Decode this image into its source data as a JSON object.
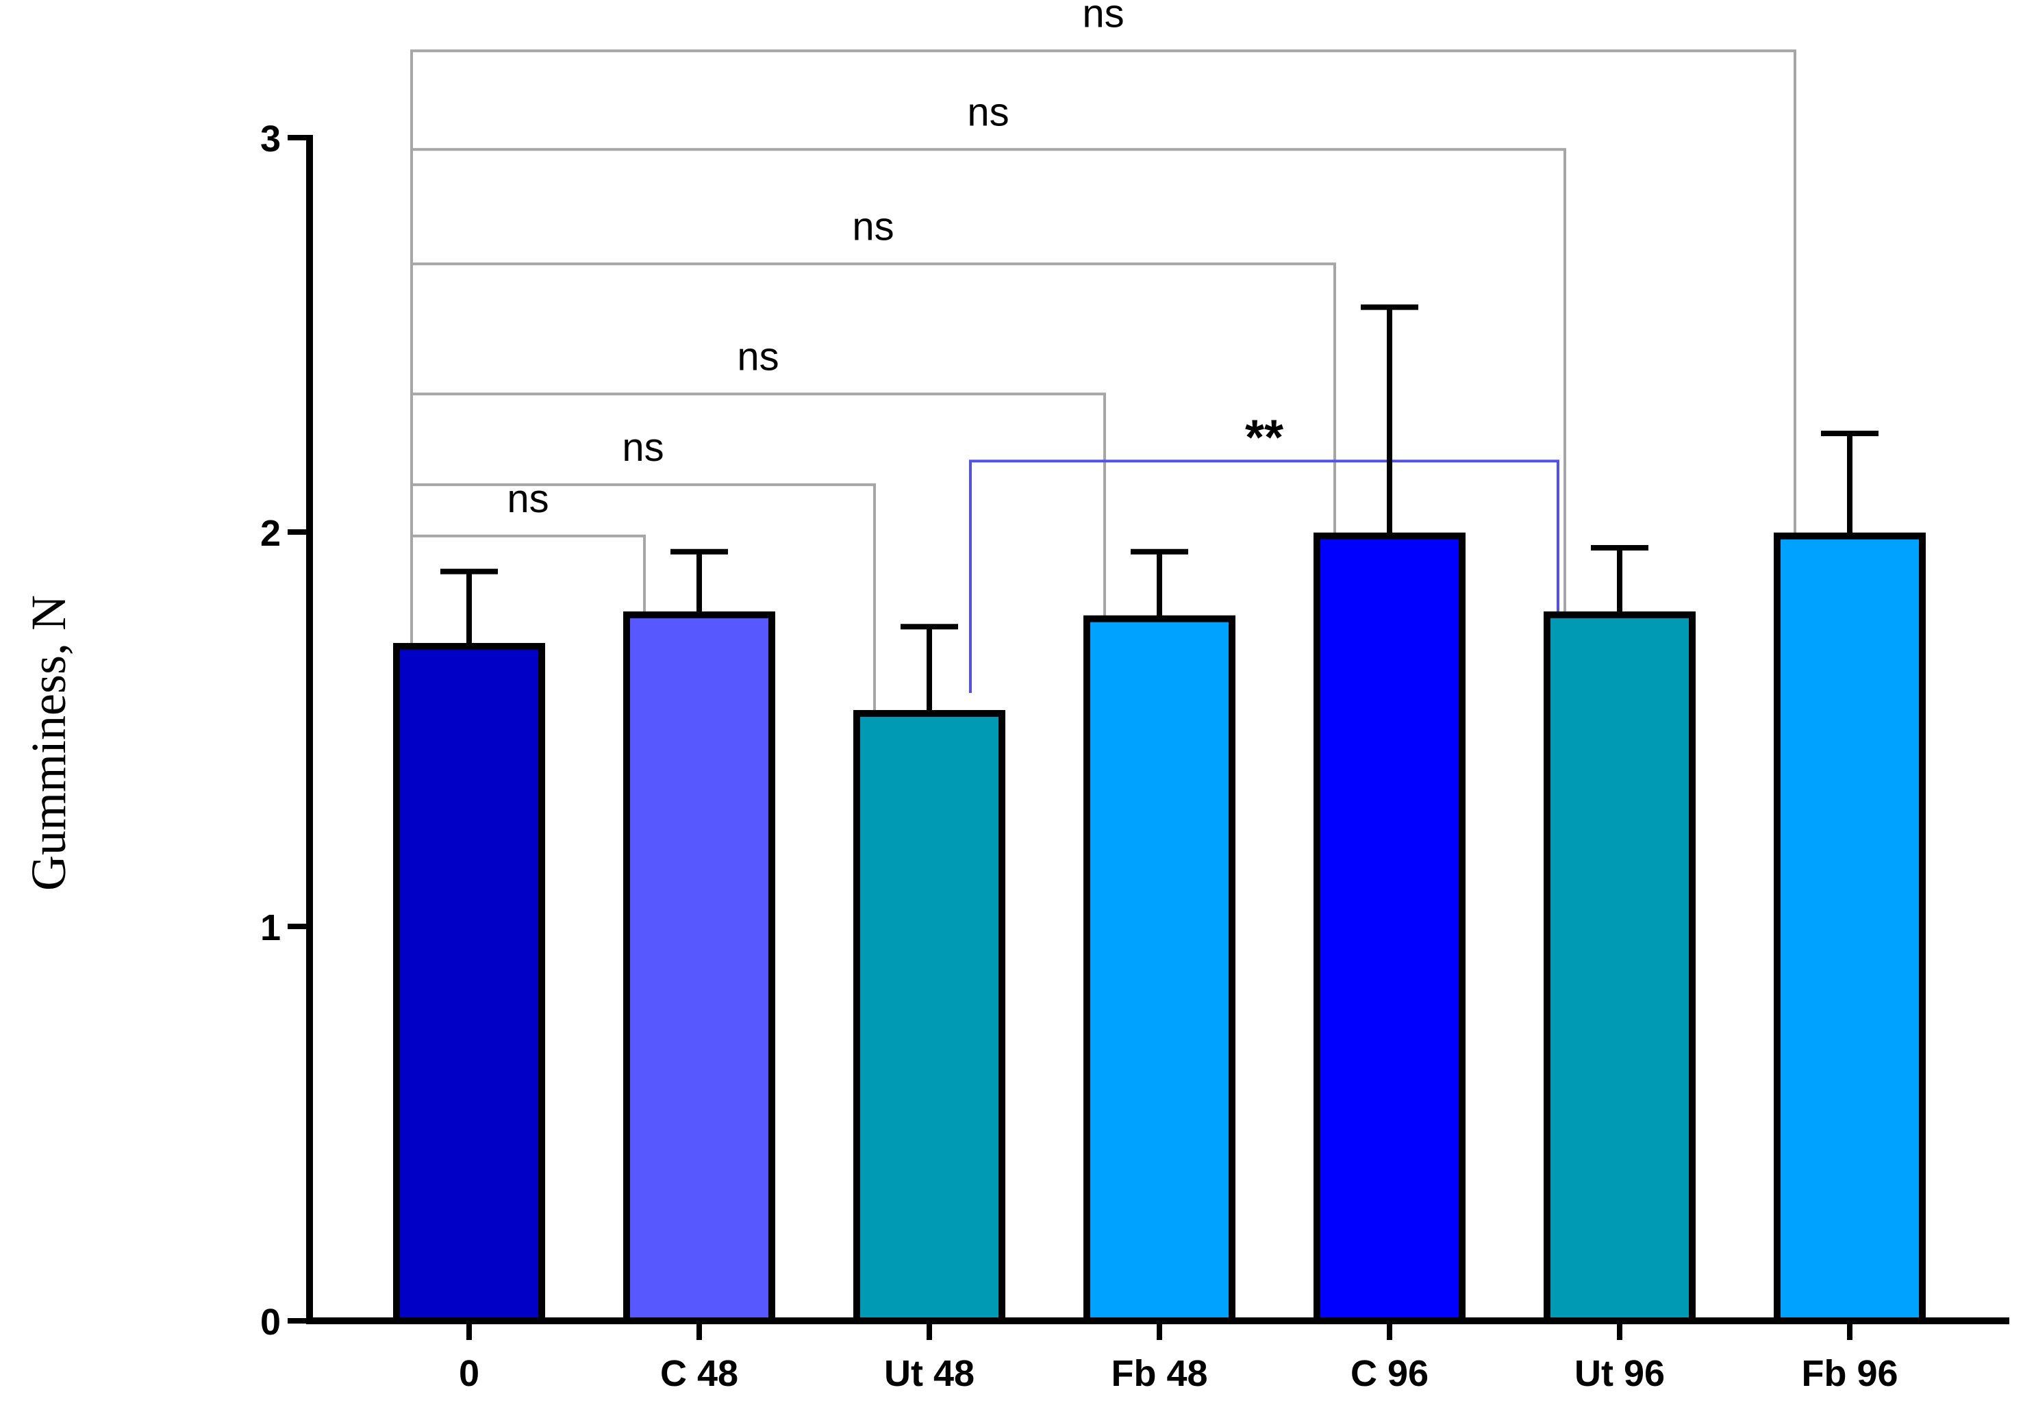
{
  "chart_data": {
    "type": "bar",
    "title": "",
    "xlabel": "",
    "ylabel": "Gumminess, N",
    "ylim": [
      0,
      3
    ],
    "yticks": [
      0,
      1,
      2,
      3
    ],
    "ytick_labels": [
      "0",
      "1",
      "2",
      "3"
    ],
    "categories": [
      "0",
      "C 48",
      "Ut 48",
      "Fb 48",
      "C 96",
      "Ut 96",
      "Fb 96"
    ],
    "values": [
      1.71,
      1.79,
      1.54,
      1.78,
      1.99,
      1.79,
      1.99
    ],
    "errors": [
      0.19,
      0.16,
      0.22,
      0.17,
      0.58,
      0.17,
      0.26
    ],
    "colors": [
      "#0000c6",
      "#5858ff",
      "#009ab4",
      "#00a2ff",
      "#0000ff",
      "#009ab4",
      "#00a2ff"
    ],
    "comparisons": [
      {
        "from": "0",
        "to": "Fb 96",
        "label": "ns",
        "line_y": 3.22,
        "color": "#a6a6a6"
      },
      {
        "from": "0",
        "to": "Ut 96",
        "label": "ns",
        "line_y": 2.97,
        "color": "#a6a6a6"
      },
      {
        "from": "0",
        "to": "C 96",
        "label": "ns",
        "line_y": 2.68,
        "color": "#a6a6a6"
      },
      {
        "from": "0",
        "to": "Fb 48",
        "label": "ns",
        "line_y": 2.35,
        "color": "#a6a6a6"
      },
      {
        "from": "0",
        "to": "Ut 48",
        "label": "ns",
        "line_y": 2.12,
        "color": "#a6a6a6"
      },
      {
        "from": "0",
        "to": "C 48",
        "label": "ns",
        "line_y": 1.99,
        "color": "#a6a6a6"
      },
      {
        "from": "Ut 48",
        "to": "Ut 96",
        "label": "**",
        "line_y": 2.18,
        "color": "#5050f0"
      }
    ]
  }
}
